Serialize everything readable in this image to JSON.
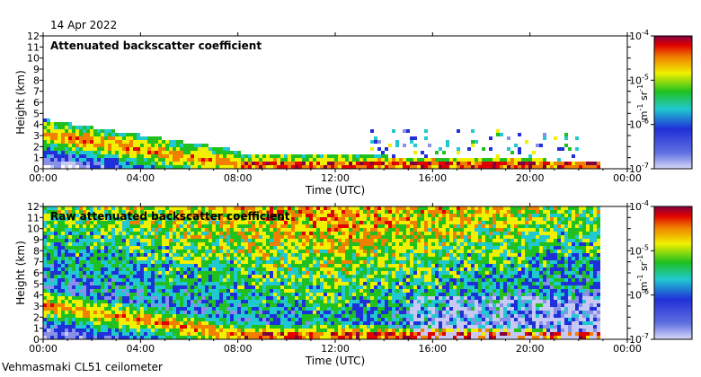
{
  "date_label": "14 Apr 2022",
  "footer_label": "Vehmasmaki CL51 ceilometer",
  "chart_data": [
    {
      "type": "heatmap",
      "title": "Attenuated backscatter coefficient",
      "xlabel": "Time (UTC)",
      "ylabel": "Height (km)",
      "xticks": [
        "00:00",
        "04:00",
        "08:00",
        "12:00",
        "16:00",
        "20:00",
        "00:00"
      ],
      "yticks": [
        0,
        1,
        2,
        3,
        4,
        5,
        6,
        7,
        8,
        9,
        10,
        11,
        12
      ],
      "xlim_hours": [
        0,
        24
      ],
      "ylim_km": [
        0,
        12
      ],
      "colorbar": {
        "unit_base": "m",
        "unit_exp": "-1",
        "unit_base2": "sr",
        "unit_exp2": "-1",
        "ticks": [
          {
            "base": "10",
            "exp": "-4"
          },
          {
            "base": "10",
            "exp": "-5"
          },
          {
            "base": "10",
            "exp": "-6"
          },
          {
            "base": "10",
            "exp": "-7"
          }
        ]
      }
    },
    {
      "type": "heatmap",
      "title": "Raw attenuated backscatter coefficient",
      "xlabel": "Time (UTC)",
      "ylabel": "Height (km)",
      "xticks": [
        "00:00",
        "04:00",
        "08:00",
        "12:00",
        "16:00",
        "20:00",
        "00:00"
      ],
      "yticks": [
        0,
        1,
        2,
        3,
        4,
        5,
        6,
        7,
        8,
        9,
        10,
        11,
        12
      ],
      "xlim_hours": [
        0,
        24
      ],
      "ylim_km": [
        0,
        12
      ],
      "colorbar": {
        "unit_base": "m",
        "unit_exp": "-1",
        "unit_base2": "sr",
        "unit_exp2": "-1",
        "ticks": [
          {
            "base": "10",
            "exp": "-4"
          },
          {
            "base": "10",
            "exp": "-5"
          },
          {
            "base": "10",
            "exp": "-6"
          },
          {
            "base": "10",
            "exp": "-7"
          }
        ]
      }
    }
  ],
  "colors": {
    "low": "#b8b8f0",
    "blue": "#2030d8",
    "cyan": "#20c8d0",
    "green": "#20c020",
    "yellow": "#f0f000",
    "orange": "#f08000",
    "red": "#e00000",
    "purple": "#800040"
  }
}
